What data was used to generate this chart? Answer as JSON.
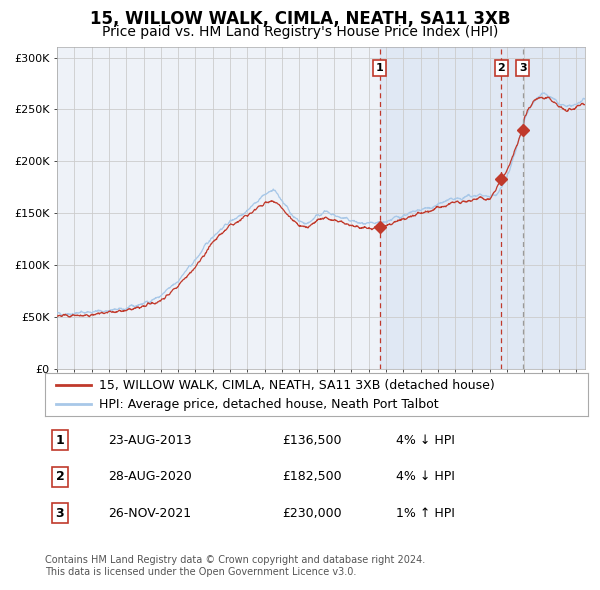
{
  "title": "15, WILLOW WALK, CIMLA, NEATH, SA11 3XB",
  "subtitle": "Price paid vs. HM Land Registry's House Price Index (HPI)",
  "ylabel_ticks": [
    "£0",
    "£50K",
    "£100K",
    "£150K",
    "£200K",
    "£250K",
    "£300K"
  ],
  "ytick_vals": [
    0,
    50000,
    100000,
    150000,
    200000,
    250000,
    300000
  ],
  "ylim": [
    0,
    310000
  ],
  "xlim_start": 1995.0,
  "xlim_end": 2025.5,
  "hpi_color": "#a8c8e8",
  "price_color": "#c0392b",
  "bg_color": "#ffffff",
  "plot_bg": "#eef2f8",
  "grid_color": "#cccccc",
  "shade_color": "#c8d8ee",
  "sale_dates": [
    2013.648,
    2020.662,
    2021.906
  ],
  "sale_prices": [
    136500,
    182500,
    230000
  ],
  "sale_labels": [
    "1",
    "2",
    "3"
  ],
  "vline1_x": 2013.648,
  "vline2_x": 2020.662,
  "vline3_x": 2021.906,
  "shade_start": 2013.648,
  "shade_end": 2025.5,
  "legend_line1": "15, WILLOW WALK, CIMLA, NEATH, SA11 3XB (detached house)",
  "legend_line2": "HPI: Average price, detached house, Neath Port Talbot",
  "table_rows": [
    [
      "1",
      "23-AUG-2013",
      "£136,500",
      "4% ↓ HPI"
    ],
    [
      "2",
      "28-AUG-2020",
      "£182,500",
      "4% ↓ HPI"
    ],
    [
      "3",
      "26-NOV-2021",
      "£230,000",
      "1% ↑ HPI"
    ]
  ],
  "footer": "Contains HM Land Registry data © Crown copyright and database right 2024.\nThis data is licensed under the Open Government Licence v3.0.",
  "title_fontsize": 12,
  "subtitle_fontsize": 10,
  "axis_fontsize": 8,
  "legend_fontsize": 9,
  "table_fontsize": 9,
  "footer_fontsize": 7
}
